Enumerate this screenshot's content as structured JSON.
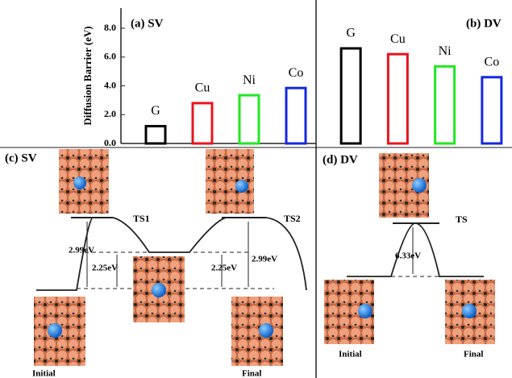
{
  "chart_data": [
    {
      "type": "bar",
      "title": "(a) SV",
      "y_label": "Diffusion Barrier (eV)",
      "categories": [
        "G",
        "Cu",
        "Ni",
        "Co"
      ],
      "values": [
        1.2,
        2.8,
        3.35,
        3.85
      ],
      "colors": [
        "#000000",
        "#e8141e",
        "#22e822",
        "#1428e0"
      ],
      "ylim": [
        0,
        9.4
      ],
      "yticks": [
        {
          "value": 0,
          "label": "0.0"
        },
        {
          "value": 2,
          "label": "2.0"
        },
        {
          "value": 4,
          "label": "4.0"
        },
        {
          "value": 6,
          "label": "6.0"
        },
        {
          "value": 8,
          "label": "8.0"
        }
      ]
    },
    {
      "type": "bar",
      "title": "(b) DV",
      "categories": [
        "G",
        "Cu",
        "Ni",
        "Co"
      ],
      "values": [
        6.6,
        6.2,
        5.35,
        4.6
      ],
      "colors": [
        "#000000",
        "#e8141e",
        "#22e822",
        "#1428e0"
      ],
      "ylim": [
        0,
        9.4
      ]
    }
  ],
  "panel_c": {
    "label": "(c) SV",
    "ts1": "TS1",
    "ts2": "TS2",
    "left_barrier": "2.99eV",
    "left_mid": "2.25eV",
    "right_mid": "2.25eV",
    "right_barrier": "2.99eV",
    "initial": "Initial",
    "final": "Final"
  },
  "panel_d": {
    "label": "(d) DV",
    "ts": "TS",
    "barrier": "6.33eV",
    "initial": "Initial",
    "final": "Final"
  }
}
